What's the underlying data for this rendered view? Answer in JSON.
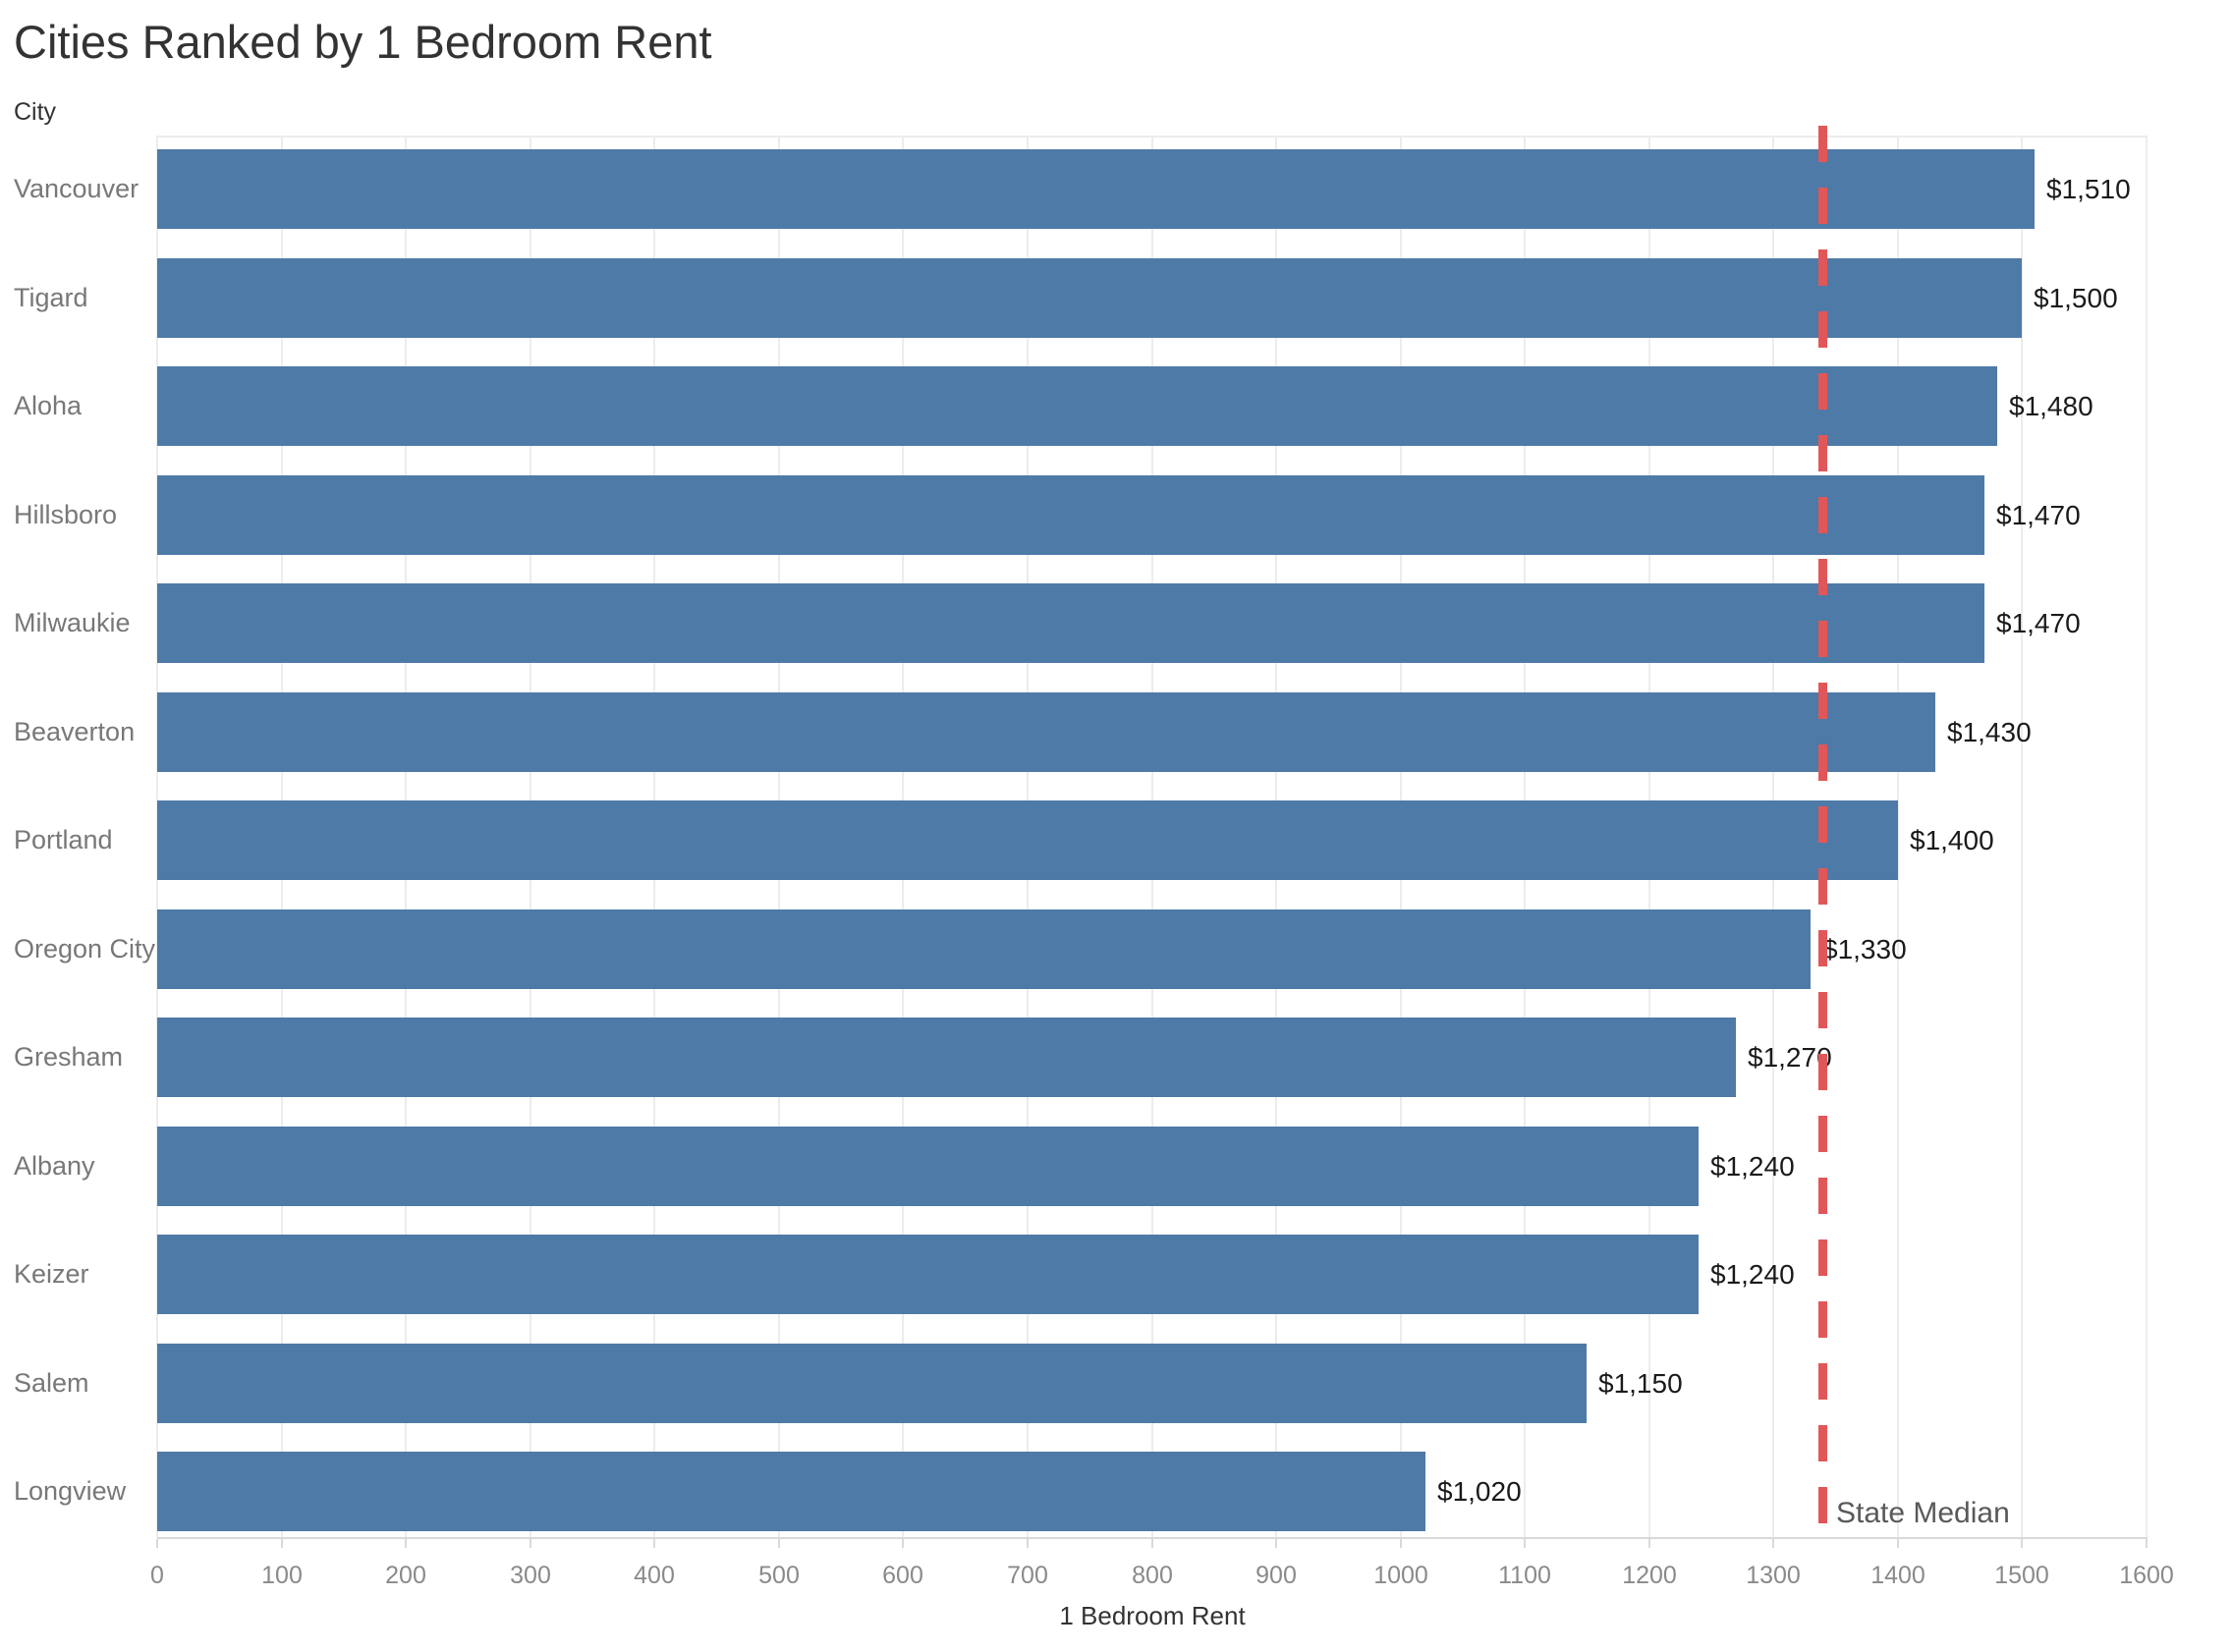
{
  "chart_data": {
    "type": "bar",
    "orientation": "horizontal",
    "title": "Cities Ranked by 1 Bedroom Rent",
    "ylabel": "City",
    "xlabel": "1 Bedroom Rent",
    "categories": [
      "Vancouver",
      "Tigard",
      "Aloha",
      "Hillsboro",
      "Milwaukie",
      "Beaverton",
      "Portland",
      "Oregon City",
      "Gresham",
      "Albany",
      "Keizer",
      "Salem",
      "Longview"
    ],
    "values": [
      1510,
      1500,
      1480,
      1470,
      1470,
      1430,
      1400,
      1330,
      1270,
      1240,
      1240,
      1150,
      1020
    ],
    "value_labels": [
      "$1,510",
      "$1,500",
      "$1,480",
      "$1,470",
      "$1,470",
      "$1,430",
      "$1,400",
      "$1,330",
      "$1,270",
      "$1,240",
      "$1,240",
      "$1,150",
      "$1,020"
    ],
    "xlim": [
      0,
      1600
    ],
    "x_ticks": [
      0,
      100,
      200,
      300,
      400,
      500,
      600,
      700,
      800,
      900,
      1000,
      1100,
      1200,
      1300,
      1400,
      1500,
      1600
    ],
    "grid": true,
    "legend": false,
    "reference_line": {
      "label": "State Median",
      "value": 1340,
      "style": "dashed"
    }
  },
  "colors": {
    "bar": "#4e7aa7",
    "reference_line": "#e15759",
    "title_text": "#333333",
    "category_text": "#787878",
    "value_text": "#1a1a1a",
    "tick_text": "#8a8a8a",
    "gridline": "#ececec",
    "axis_line": "#d9d9d9",
    "median_label_text": "#595959"
  }
}
